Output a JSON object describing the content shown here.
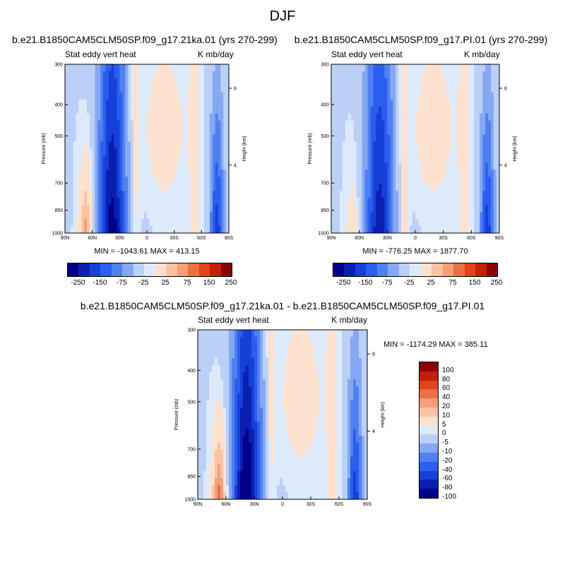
{
  "title": "DJF",
  "colors": {
    "levels14": [
      "#00008b",
      "#0a1fb0",
      "#1740d8",
      "#2a5df0",
      "#5080f0",
      "#86a8f2",
      "#bad0f7",
      "#ddeafb",
      "#fde1cf",
      "#fbc3a3",
      "#f59e78",
      "#ee6e46",
      "#e2421c",
      "#c41e0c",
      "#8b0000"
    ]
  },
  "chart_data": [
    {
      "type": "heatmap",
      "id": "p1",
      "title": "b.e21.B1850CAM5CLM50SP.f09_g17.21ka.01 (yrs 270-299)",
      "left_label": "Stat eddy vert heat",
      "right_label": "K mb/day",
      "ylabel": "Pressure (mb)",
      "y2label": "Height (km)",
      "xticks": [
        "90N",
        "60N",
        "30N",
        "0",
        "30S",
        "60S",
        "90S"
      ],
      "yticks": [
        "300",
        "400",
        "500",
        "700",
        "850",
        "1000"
      ],
      "y2ticks": [
        "8",
        "4"
      ],
      "min_max": "MIN = -1043.61  MAX = 413.15",
      "colorbar_labels": [
        "-250",
        "-150",
        "-75",
        "-25",
        "25",
        "75",
        "150",
        "250"
      ]
    },
    {
      "type": "heatmap",
      "id": "p2",
      "title": "b.e21.B1850CAM5CLM50SP.f09_g17.PI.01 (yrs 270-299)",
      "left_label": "Stat eddy vert heat",
      "right_label": "K mb/day",
      "ylabel": "Pressure (mb)",
      "y2label": "Height (km)",
      "xticks": [
        "90N",
        "60N",
        "30N",
        "0",
        "30S",
        "60S",
        "90S"
      ],
      "yticks": [
        "300",
        "400",
        "500",
        "700",
        "850",
        "1000"
      ],
      "y2ticks": [
        "8",
        "4"
      ],
      "min_max": "MIN = -776.25  MAX = 1877.70",
      "colorbar_labels": [
        "-250",
        "-150",
        "-75",
        "-25",
        "25",
        "75",
        "150",
        "250"
      ]
    },
    {
      "type": "heatmap",
      "id": "p3",
      "title": "b.e21.B1850CAM5CLM50SP.f09_g17.21ka.01 - b.e21.B1850CAM5CLM50SP.f09_g17.PI.01",
      "left_label": "Stat eddy vert heat",
      "right_label": "K mb/day",
      "ylabel": "Pressure (mb)",
      "y2label": "Height (km)",
      "xticks": [
        "90N",
        "60N",
        "30N",
        "0",
        "30S",
        "60S",
        "90S"
      ],
      "yticks": [
        "300",
        "400",
        "500",
        "700",
        "850",
        "1000"
      ],
      "y2ticks": [
        "8",
        "4"
      ],
      "min_max": "MIN = -1174.29  MAX = 385.11",
      "colorbar_labels": [
        "100",
        "80",
        "60",
        "40",
        "20",
        "10",
        "5",
        "0",
        "-5",
        "-10",
        "-20",
        "-40",
        "-60",
        "-80",
        "-100"
      ]
    }
  ]
}
